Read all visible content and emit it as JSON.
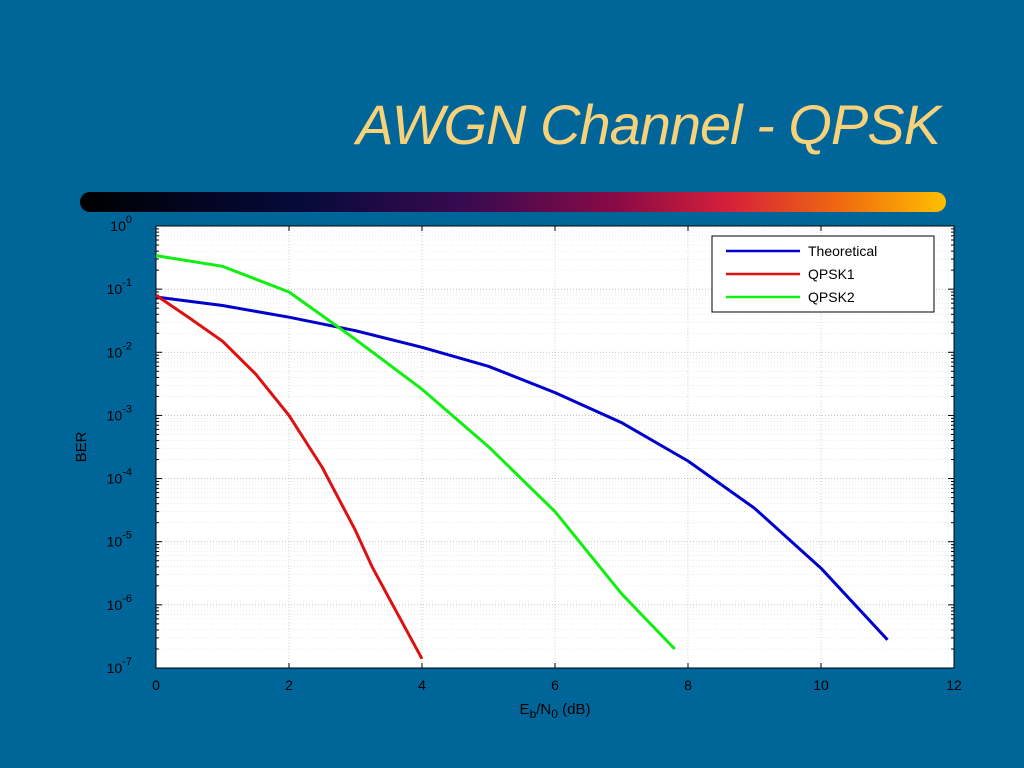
{
  "slide": {
    "title": "AWGN Channel - QPSK"
  },
  "chart_data": {
    "type": "line",
    "x_axis": {
      "label_main": "E",
      "label_sub1": "b",
      "label_mid": "/N",
      "label_sub2": "0",
      "label_unit": " (dB)",
      "range": [
        0,
        12
      ],
      "ticks": [
        0,
        2,
        4,
        6,
        8,
        10,
        12
      ]
    },
    "y_axis": {
      "label": "BER",
      "scale": "log",
      "range_exponent": [
        -7,
        0
      ],
      "tick_exponents": [
        0,
        -1,
        -2,
        -3,
        -4,
        -5,
        -6,
        -7
      ],
      "tick_base": "10"
    },
    "grid": true,
    "legend_position": "top-right",
    "series": [
      {
        "name": "Theoretical",
        "color": "#0000cc",
        "x": [
          0,
          1,
          2,
          3,
          4,
          5,
          6,
          7,
          8,
          9,
          10,
          11
        ],
        "y": [
          0.075,
          0.055,
          0.036,
          0.022,
          0.012,
          0.006,
          0.0023,
          0.00077,
          0.00019,
          3.4e-05,
          3.8e-06,
          2.8e-07
        ]
      },
      {
        "name": "QPSK1",
        "color": "#dd1111",
        "x": [
          0,
          0.5,
          1,
          1.5,
          2,
          2.5,
          3,
          3.25,
          3.5,
          4
        ],
        "y": [
          0.08,
          0.035,
          0.015,
          0.0045,
          0.001,
          0.00015,
          1.5e-05,
          4e-06,
          1.3e-06,
          1.4e-07
        ]
      },
      {
        "name": "QPSK2",
        "color": "#11ee11",
        "x": [
          0,
          1,
          2,
          3,
          4,
          5,
          6,
          7,
          7.8
        ],
        "y": [
          0.34,
          0.23,
          0.09,
          0.016,
          0.0026,
          0.00032,
          3e-05,
          1.5e-06,
          2e-07
        ]
      }
    ]
  }
}
